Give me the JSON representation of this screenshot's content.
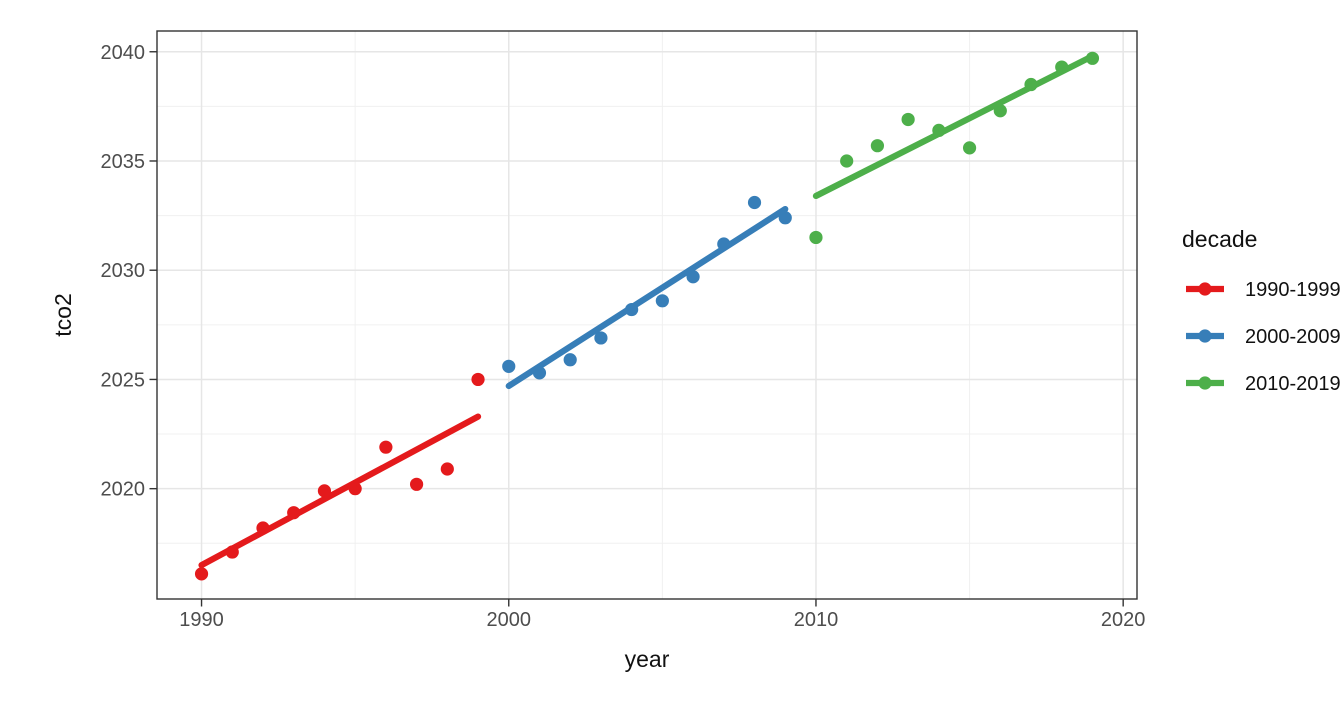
{
  "chart_data": {
    "type": "scatter",
    "title": "",
    "xlabel": "year",
    "ylabel": "tco2",
    "legend_title": "decade",
    "legend_position": "right",
    "grid": true,
    "xlim": [
      1988.55,
      2020.45
    ],
    "ylim": [
      2014.95,
      2040.95
    ],
    "x_ticks": {
      "values": [
        1990,
        2000,
        2010,
        2020
      ],
      "labels": [
        "1990",
        "2000",
        "2010",
        "2020"
      ]
    },
    "y_ticks": {
      "values": [
        2020,
        2025,
        2030,
        2035,
        2040
      ],
      "labels": [
        "2020",
        "2025",
        "2030",
        "2035",
        "2040"
      ]
    },
    "x_minor_gridlines": [
      1995,
      2005,
      2015
    ],
    "y_minor_gridlines": [
      2017.5,
      2022.5,
      2027.5,
      2032.5,
      2037.5
    ],
    "series": [
      {
        "name": "1990-1999",
        "color": "#E41A1C",
        "x": [
          1990,
          1991,
          1992,
          1993,
          1994,
          1995,
          1996,
          1997,
          1998,
          1999
        ],
        "y": [
          2016.1,
          2017.1,
          2018.2,
          2018.9,
          2019.9,
          2020.0,
          2021.9,
          2020.2,
          2020.9,
          2025.0
        ],
        "trend_line": {
          "x1": 1990,
          "y1": 2016.5,
          "x2": 1999,
          "y2": 2023.3
        }
      },
      {
        "name": "2000-2009",
        "color": "#377EB8",
        "x": [
          2000,
          2001,
          2002,
          2003,
          2004,
          2005,
          2006,
          2007,
          2008,
          2009
        ],
        "y": [
          2025.6,
          2025.3,
          2025.9,
          2026.9,
          2028.2,
          2028.6,
          2029.7,
          2031.2,
          2033.1,
          2032.4
        ],
        "trend_line": {
          "x1": 2000,
          "y1": 2024.7,
          "x2": 2009,
          "y2": 2032.8
        }
      },
      {
        "name": "2010-2019",
        "color": "#4DAF4A",
        "x": [
          2010,
          2011,
          2012,
          2013,
          2014,
          2015,
          2016,
          2017,
          2018,
          2019
        ],
        "y": [
          2031.5,
          2035.0,
          2035.7,
          2036.9,
          2036.4,
          2035.6,
          2037.3,
          2038.5,
          2039.3,
          2039.7
        ],
        "trend_line": {
          "x1": 2010,
          "y1": 2033.4,
          "x2": 2019,
          "y2": 2039.8
        }
      }
    ],
    "style": {
      "background": "#FFFFFF",
      "panel_border_color": "#333333",
      "grid_major_color": "#E6E6E6",
      "grid_minor_color": "#F0F0F0",
      "tick_color": "#333333",
      "tick_label_color": "#4D4D4D"
    }
  }
}
